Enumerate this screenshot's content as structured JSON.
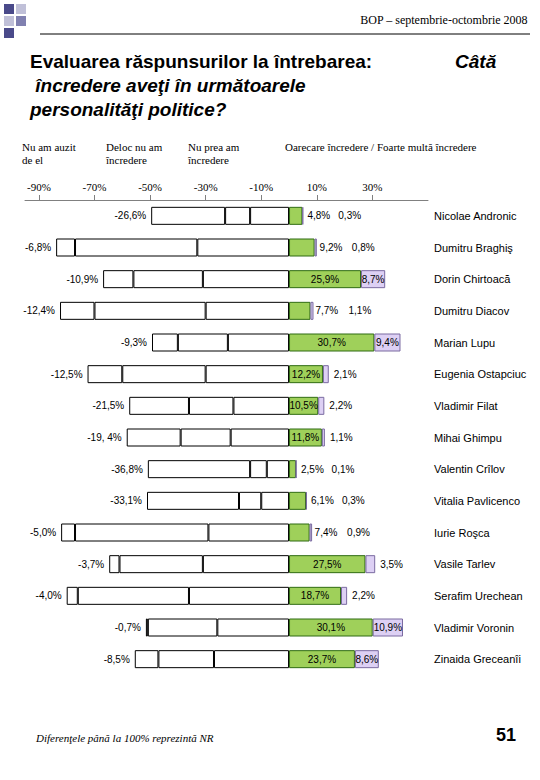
{
  "header": "BOP – septembrie-octombrie 2008",
  "footnote": "Diferenţele până la 100% reprezintă NR",
  "page_number": "51",
  "chart_data": {
    "type": "bar",
    "orientation": "horizontal",
    "stacked": true,
    "grid": false,
    "title": "Evaluarea răspunsurilor la întrebarea:",
    "question": "Câtă încredere aveţi în următoarele personalităţi politice?",
    "column_headers": [
      "Nu am auzit de el",
      "Deloc nu am încredere",
      "Nu prea am încredere",
      "Oarecare încredere / Foarte multă încredere"
    ],
    "categories": [
      "Nicolae Andronic",
      "Dumitru Braghiş",
      "Dorin Chirtoacă",
      "Dumitru Diacov",
      "Marian Lupu",
      "Eugenia Ostapciuc",
      "Vladimir Filat",
      "Mihai Ghimpu",
      "Valentin Crîlov",
      "Vitalia Pavlicenco",
      "Iurie Roşca",
      "Vasile Tarlev",
      "Serafim Urechean",
      "Vladimir Voronin",
      "Zinaida Greceanîi"
    ],
    "xlim": [
      -95,
      50
    ],
    "xticks": [
      {
        "value": -90,
        "label": "-90%"
      },
      {
        "value": -70,
        "label": "-70%"
      },
      {
        "value": -50,
        "label": "-50%"
      },
      {
        "value": -30,
        "label": "-30%"
      },
      {
        "value": -10,
        "label": "-10%"
      },
      {
        "value": 10,
        "label": "10%"
      },
      {
        "value": 30,
        "label": "30%"
      }
    ],
    "series": [
      {
        "color": "#ffffff",
        "data_labels": false,
        "values": [
          -14,
          -33,
          -31,
          -30,
          -22,
          -30,
          -20,
          -21,
          -8,
          -10,
          -29,
          -31,
          -36,
          -25.8,
          -27
        ]
      },
      {
        "color": "#ffffff",
        "data_labels": false,
        "values": [
          -9,
          -44,
          -25,
          -40,
          -18,
          -30,
          -16,
          -18,
          -6,
          -8,
          -48,
          -30,
          -40,
          -25,
          -20
        ]
      },
      {
        "color": "#ffffff",
        "data_labels": true,
        "values": [
          -26.6,
          -6.8,
          -10.9,
          -12.4,
          -9.3,
          -12.5,
          -21.5,
          -19.4,
          -36.8,
          -33.1,
          -5.0,
          -3.7,
          -4.0,
          -0.7,
          -8.5
        ],
        "value_labels": [
          "-26,6%",
          "-6,8%",
          "-10,9%",
          "-12,4%",
          "-9,3%",
          "-12,5%",
          "-21,5%",
          "-19, 4%",
          "-36,8%",
          "-33,1%",
          "-5,0%",
          "-3,7%",
          "-4,0%",
          "-0,7%",
          "-8,5%"
        ]
      },
      {
        "color": "#9fd05a",
        "data_labels": true,
        "values": [
          4.8,
          9.2,
          25.9,
          7.7,
          30.7,
          12.2,
          10.5,
          11.8,
          2.5,
          6.1,
          7.4,
          27.5,
          18.7,
          30.1,
          23.7
        ],
        "value_labels": [
          "4,8%",
          "9,2%",
          "25,9%",
          "7,7%",
          "30,7%",
          "12,2%",
          "10,5%",
          "11,8%",
          "2,5%",
          "6,1%",
          "7,4%",
          "27,5%",
          "18,7%",
          "30,1%",
          "23,7%"
        ]
      },
      {
        "color": "#ddd0f4",
        "data_labels": true,
        "values": [
          0.3,
          0.8,
          8.7,
          1.1,
          9.4,
          2.1,
          2.2,
          1.1,
          0.1,
          0.3,
          0.9,
          3.5,
          2.2,
          10.9,
          8.6
        ],
        "value_labels": [
          "0,3%",
          "0,8%",
          "8,7%",
          "1,1%",
          "9,4%",
          "2,1%",
          "2,2%",
          "1,1%",
          "0,1%",
          "0,3%",
          "0,9%",
          "3,5%",
          "2,2%",
          "10,9%",
          "8,6%"
        ]
      }
    ]
  }
}
